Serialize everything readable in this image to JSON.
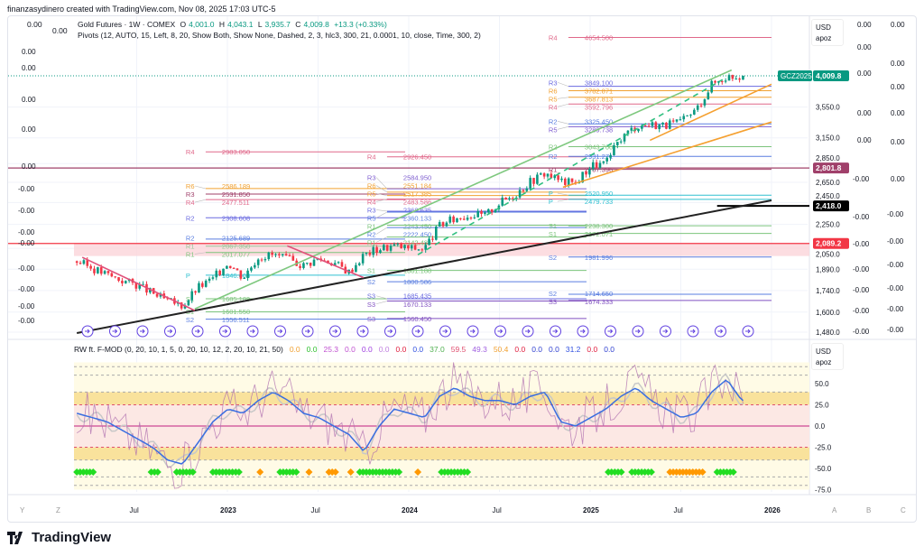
{
  "credit": "finanzasydinero created with TradingView.com, Nov 08, 2025 17:03 UTC-5",
  "legend": {
    "zero_a": "0.00",
    "zero_b": "0.00",
    "symbol": "Gold Futures · 1W · COMEX",
    "o_label": "O",
    "o": "4,001.0",
    "h_label": "H",
    "h": "4,043.1",
    "l_label": "L",
    "l": "3,935.7",
    "c_label": "C",
    "c": "4,009.8",
    "change": "+13.3 (+0.33%)",
    "pivots": "Pivots (12, AUTO, 15, Left, 8, 20, Show Both, Show None, Dashed, 2, 3, hlc3, 300, 21, 0.0001, 10, close, Time, 300, 2)"
  },
  "indicator": {
    "name": "RW ft. F-MOD (0, 20, 10, 1, 5, 0, 20, 10, 12, 2, 20, 10, 21, 50)",
    "values": [
      {
        "v": "0.0",
        "c": "#f0a030"
      },
      {
        "v": "0.0",
        "c": "#30c030"
      },
      {
        "v": "25.3",
        "c": "#c050d0"
      },
      {
        "v": "0.0",
        "c": "#c050d0"
      },
      {
        "v": "0.0",
        "c": "#a040e0"
      },
      {
        "v": "0.0",
        "c": "#c080e0"
      },
      {
        "v": "0.0",
        "c": "#e02040"
      },
      {
        "v": "0.0",
        "c": "#3050e0"
      },
      {
        "v": "37.0",
        "c": "#50b050"
      },
      {
        "v": "59.5",
        "c": "#e05070"
      },
      {
        "v": "49.3",
        "c": "#a060e0"
      },
      {
        "v": "50.4",
        "c": "#f0a030"
      },
      {
        "v": "0.0",
        "c": "#e02040"
      },
      {
        "v": "0.0",
        "c": "#3040d0"
      },
      {
        "v": "0.0",
        "c": "#3040d0"
      },
      {
        "v": "31.2",
        "c": "#3050e0"
      },
      {
        "v": "0.0",
        "c": "#e02040"
      },
      {
        "v": "0.0",
        "c": "#3040d0"
      }
    ]
  },
  "scale_box": {
    "currency": "USD",
    "mode": "apoz"
  },
  "logo": "TradingView",
  "colors": {
    "up": "#089981",
    "down": "#f23645",
    "green_channel": "#7ec87e",
    "orange": "#f5a030",
    "black": "#222222",
    "maroon": "#a0406a"
  },
  "chart_data": {
    "type": "candlestick",
    "title": "Gold Futures · 1W · COMEX",
    "start_year": 2022.17,
    "monthly_close": [
      1950,
      1900,
      1850,
      1810,
      1780,
      1720,
      1670,
      1640,
      1760,
      1820,
      1945,
      1830,
      1985,
      2000,
      1960,
      1920,
      1970,
      1940,
      1870,
      2000,
      2050,
      2070,
      2050,
      2050,
      2240,
      2300,
      2340,
      2330,
      2450,
      2530,
      2660,
      2750,
      2660,
      2640,
      2830,
      2850,
      3150,
      3300,
      3320,
      3310,
      3350,
      3520,
      3880,
      4000,
      4009.8
    ],
    "y_scale": "log",
    "ylim": [
      1480,
      4100
    ],
    "y_ticks": [
      "3,550.0",
      "3,150.0",
      "2,850.0",
      "2,650.0",
      "2,450.0",
      "2,250.0",
      "2,050.0",
      "1,890.0",
      "1,740.0",
      "1,600.0",
      "1,480.0"
    ],
    "y_tick_values": [
      3550,
      3150,
      2850,
      2650,
      2450,
      2250,
      2050,
      1890,
      1740,
      1600,
      1480
    ],
    "x_ticks": [
      {
        "t": 2022.5,
        "label": "Jul"
      },
      {
        "t": 2023,
        "label": "2023"
      },
      {
        "t": 2023.5,
        "label": "Jul"
      },
      {
        "t": 2024,
        "label": "2024"
      },
      {
        "t": 2024.5,
        "label": "Jul"
      },
      {
        "t": 2025,
        "label": "2025"
      },
      {
        "t": 2025.5,
        "label": "Jul"
      },
      {
        "t": 2026,
        "label": "2026"
      }
    ],
    "axis_letters_left": [
      "Y",
      "Z"
    ],
    "axis_letters_right": [
      "A",
      "B",
      "C"
    ],
    "price_tags": [
      {
        "label": "GCZ2025",
        "value": 4009.8,
        "text": "4,009.8",
        "color": "#089981"
      },
      {
        "value": 2801.8,
        "text": "2,801.8",
        "color": "#a0406a"
      },
      {
        "value": 2418.0,
        "text": "2,418.0",
        "color": "#000000"
      },
      {
        "value": 2089.2,
        "text": "2,089.2",
        "color": "#f23645"
      }
    ],
    "pivot_groups": [
      {
        "t0": 2022.92,
        "t1": 2023.98,
        "levels": [
          [
            "R4",
            "2983.050",
            2983.05,
            "#e0688a"
          ],
          [
            "R6",
            "2586.189",
            2586.19,
            "#f0a030"
          ],
          [
            "R3",
            "2531.850",
            2531.85,
            "#a0406a"
          ],
          [
            "R4",
            "2477.511",
            2477.51,
            "#e0688a"
          ],
          [
            "R2",
            "2308.608",
            2308.6,
            "#6a6ae0"
          ],
          [
            "R2",
            "2125.689",
            2125.69,
            "#5a7ee0"
          ],
          [
            "R1",
            "2067.350",
            2067.35,
            "#9ac89a"
          ],
          [
            "R1",
            "2017.077",
            2017.08,
            "#7cc47c"
          ],
          [
            "P",
            "1846.608",
            1846.6,
            "#30c0d0"
          ],
          [
            "S1",
            "1685.189",
            1685.19,
            "#7cc47c"
          ],
          [
            "S1",
            "1601.550",
            1601.55,
            "#7cc47c"
          ],
          [
            "S2",
            "1556.511",
            1556.51,
            "#5a7ee0"
          ]
        ]
      },
      {
        "t0": 2023.92,
        "t1": 2024.98,
        "levels": [
          [
            "R4",
            "2926.450",
            2926.45,
            "#e0688a"
          ],
          [
            "R3",
            "2584.950",
            2584.95,
            "#8060d0"
          ],
          [
            "R6",
            "2551.184",
            2551.18,
            "#f0a030"
          ],
          [
            "R5",
            "2517.385",
            2517.39,
            "#f0a030"
          ],
          [
            "R4",
            "2483.586",
            2483.59,
            "#e0688a"
          ],
          [
            "R3",
            "2368.635",
            2368.64,
            "#6a6ae0"
          ],
          [
            "R5",
            "2360.133",
            2360.13,
            "#5a7ee0"
          ],
          [
            "R1",
            "2243.450",
            2243.45,
            "#7cc47c"
          ],
          [
            "R2",
            "2222.450",
            2222.45,
            "#5a7ee0"
          ],
          [
            "R1",
            "2142.486",
            2142.49,
            "#7cc47c"
          ],
          [
            "S1",
            "1881.188",
            1881.19,
            "#7cc47c"
          ],
          [
            "S2",
            "1800.586",
            1800.59,
            "#5a7ee0"
          ],
          [
            "S3",
            "1685.435",
            1685.44,
            "#6a6ae0"
          ],
          [
            "S3",
            "1670.133",
            1670.13,
            "#8050c0"
          ],
          [
            "S3",
            "1560.450",
            1560.45,
            "#8050c0"
          ]
        ]
      },
      {
        "t0": 2024.92,
        "t1": 2026.0,
        "levels": [
          [
            "R4",
            "4654.500",
            4654.5,
            "#e0688a"
          ],
          [
            "R3",
            "3849.100",
            3849.1,
            "#6a6ae0"
          ],
          [
            "R6",
            "3782.871",
            3782.87,
            "#f0a030"
          ],
          [
            "R5",
            "3687.813",
            3687.81,
            "#f0a030"
          ],
          [
            "R4",
            "3592.796",
            3592.8,
            "#e0688a"
          ],
          [
            "R2",
            "3325.450",
            3325.45,
            "#5a7ee0"
          ],
          [
            "R5",
            "3289.738",
            3289.74,
            "#8060d0"
          ],
          [
            "R2",
            "3043.700",
            3043.7,
            "#7cc47c"
          ],
          [
            "R2",
            "2931.271",
            2931.27,
            "#5a7ee0"
          ],
          [
            "R1",
            "2787.396",
            2787.4,
            "#a0406a"
          ],
          [
            "P",
            "2520.950",
            2520.95,
            "#30c0d0"
          ],
          [
            "P",
            "2479.733",
            2479.73,
            "#30c0d0"
          ],
          [
            "S1",
            "2238.300",
            2238.3,
            "#7cc47c"
          ],
          [
            "S1",
            "2172.071",
            2172.07,
            "#7cc47c"
          ],
          [
            "S2",
            "1981.996",
            1981.996,
            "#5a7ee0"
          ],
          [
            "S2",
            "1714.650",
            1714.65,
            "#5a7ee0"
          ],
          [
            "S3",
            "1674.333",
            1674.33,
            "#8050c0"
          ]
        ]
      }
    ],
    "trendlines": [
      {
        "name": "green-channel-upper",
        "color": "#7ec87e",
        "dash": false,
        "pts": [
          [
            2022.82,
            1620
          ],
          [
            2025.78,
            4100
          ]
        ]
      },
      {
        "name": "green-channel-mid",
        "color": "#30c080",
        "dash": true,
        "pts": [
          [
            2024.05,
            2000
          ],
          [
            2025.73,
            3950
          ]
        ]
      },
      {
        "name": "orange-channel-upper",
        "color": "#f5a030",
        "dash": false,
        "pts": [
          [
            2025.33,
            3120
          ],
          [
            2026.0,
            3880
          ]
        ]
      },
      {
        "name": "orange-channel-lower",
        "color": "#f5a030",
        "dash": false,
        "pts": [
          [
            2024.85,
            2600
          ],
          [
            2026.0,
            3350
          ]
        ]
      },
      {
        "name": "long-term-support",
        "color": "#222222",
        "dash": false,
        "pts": [
          [
            2022.17,
            1475
          ],
          [
            2026.0,
            2470
          ]
        ]
      },
      {
        "name": "pink-downtrend-1",
        "color": "#e0507a",
        "dash": false,
        "pts": [
          [
            2022.2,
            1980
          ],
          [
            2022.82,
            1610
          ]
        ]
      },
      {
        "name": "pink-downtrend-2",
        "color": "#e0507a",
        "dash": false,
        "pts": [
          [
            2023.33,
            2070
          ],
          [
            2023.75,
            1830
          ]
        ]
      }
    ],
    "oscillator": {
      "ylim": [
        -80,
        80
      ],
      "y_ticks": [
        "50.0",
        "25.0",
        "0.0",
        "-25.0",
        "-50.0",
        "-75.0"
      ],
      "y_tick_values": [
        50,
        25,
        0,
        -25,
        -50,
        -75
      ],
      "blue_monthly": [
        15,
        10,
        5,
        -5,
        -15,
        -25,
        -40,
        -45,
        -20,
        5,
        20,
        15,
        30,
        40,
        30,
        15,
        10,
        0,
        -10,
        -30,
        0,
        20,
        15,
        10,
        35,
        45,
        35,
        30,
        30,
        25,
        35,
        40,
        5,
        0,
        10,
        20,
        35,
        45,
        30,
        20,
        10,
        15,
        40,
        55,
        30
      ],
      "green_signals": [
        [
          2022.17,
          2022.27
        ],
        [
          2022.58,
          2022.63
        ],
        [
          2022.72,
          2022.82
        ],
        [
          2022.92,
          2023.07
        ],
        [
          2023.29,
          2023.39
        ],
        [
          2023.73,
          2023.95
        ],
        [
          2024.18,
          2024.33
        ],
        [
          2025.1,
          2025.18
        ],
        [
          2025.23,
          2025.35
        ],
        [
          2025.7,
          2025.8
        ]
      ],
      "orange_signals": [
        [
          2023.18,
          2023.18
        ],
        [
          2023.45,
          2023.45
        ],
        [
          2023.56,
          2023.6
        ],
        [
          2023.68,
          2023.68
        ],
        [
          2024.05,
          2024.05
        ],
        [
          2025.44,
          2025.62
        ]
      ]
    }
  }
}
